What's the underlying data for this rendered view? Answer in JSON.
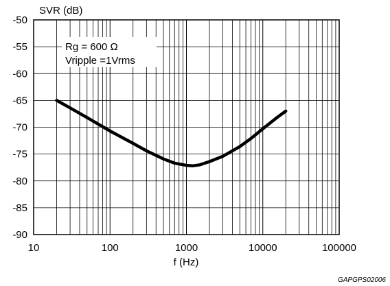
{
  "chart_data": {
    "type": "line",
    "title": "",
    "xlabel": "f (Hz)",
    "ylabel": "SVR (dB)",
    "xscale": "log",
    "xlim": [
      10,
      100000
    ],
    "ylim": [
      -90,
      -50
    ],
    "grid": true,
    "x_ticks": [
      "10",
      "100",
      "1000",
      "10000",
      "100000"
    ],
    "y_ticks": [
      "-50",
      "-55",
      "-60",
      "-65",
      "-70",
      "-75",
      "-80",
      "-85",
      "-90"
    ],
    "annotation_lines": [
      "Rg = 600 Ω",
      "Vripple =1Vrms"
    ],
    "series": [
      {
        "x": [
          20,
          30,
          50,
          100,
          200,
          300,
          500,
          700,
          1000,
          1200,
          1500,
          2000,
          3000,
          5000,
          7000,
          10000,
          15000,
          20000
        ],
        "y": [
          -65,
          -66.4,
          -68.2,
          -70.7,
          -73.0,
          -74.4,
          -75.9,
          -76.7,
          -77.1,
          -77.2,
          -77.0,
          -76.4,
          -75.4,
          -73.6,
          -72.1,
          -70.3,
          -68.3,
          -67
        ]
      }
    ]
  },
  "figure_code": "GAPGPS02006"
}
